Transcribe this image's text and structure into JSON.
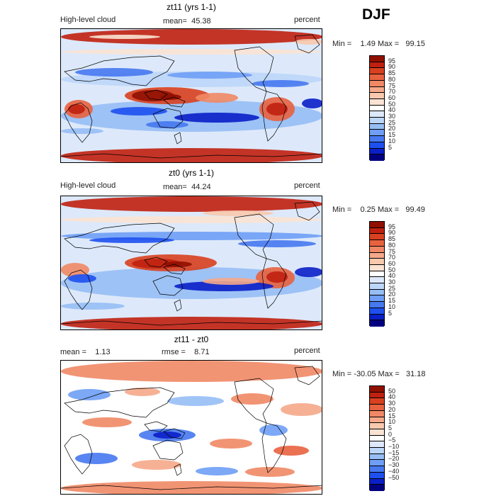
{
  "season": "DJF",
  "colors": {
    "level_scale": [
      "#000080",
      "#0a1fc8",
      "#1e50f0",
      "#4678f0",
      "#6e9ef5",
      "#96bef5",
      "#bcd6f8",
      "#dde9fa",
      "#ffffff",
      "#fbe3d3",
      "#f8c9ad",
      "#f5a98a",
      "#f08865",
      "#e8623f",
      "#d8401f",
      "#c02010",
      "#901000"
    ],
    "diff_scale": [
      "#000080",
      "#0a1fc8",
      "#1e50f0",
      "#4678f0",
      "#6e9ef5",
      "#96bef5",
      "#bcd6f8",
      "#dde9fa",
      "#ffffff",
      "#fbe3d3",
      "#f8c9ad",
      "#f5a98a",
      "#f08865",
      "#e8623f",
      "#d8401f",
      "#c02010",
      "#901000"
    ],
    "coast": "#000000"
  },
  "chart_data": [
    {
      "type": "heatmap",
      "title": "zt11 (yrs 1-1)",
      "field": "High-level cloud",
      "stat_label": "mean=",
      "stat_value": "45.38",
      "units": "percent",
      "min_label": "Min =",
      "min": "1.49",
      "max_label": "Max =",
      "max": "99.15",
      "levels": [
        "95",
        "90",
        "85",
        "80",
        "75",
        "70",
        "60",
        "50",
        "40",
        "30",
        "25",
        "20",
        "15",
        "10",
        "5"
      ]
    },
    {
      "type": "heatmap",
      "title": "zt0 (yrs 1-1)",
      "field": "High-level cloud",
      "stat_label": "mean=",
      "stat_value": "44.24",
      "units": "percent",
      "min_label": "Min =",
      "min": "0.25",
      "max_label": "Max =",
      "max": "99.49",
      "levels": [
        "95",
        "90",
        "85",
        "80",
        "75",
        "70",
        "60",
        "50",
        "40",
        "30",
        "25",
        "20",
        "15",
        "10",
        "5"
      ]
    },
    {
      "type": "heatmap",
      "title": "zt11 - zt0",
      "mean_label": "mean =",
      "mean_value": "1.13",
      "rmse_label": "rmse =",
      "rmse_value": "8.71",
      "units": "percent",
      "min_label": "Min =",
      "min": "-30.05",
      "max_label": "Max =",
      "max": "31.18",
      "levels": [
        "50",
        "40",
        "30",
        "20",
        "15",
        "10",
        "5",
        "0",
        "−5",
        "−10",
        "−15",
        "−20",
        "−30",
        "−40",
        "−50"
      ]
    }
  ]
}
